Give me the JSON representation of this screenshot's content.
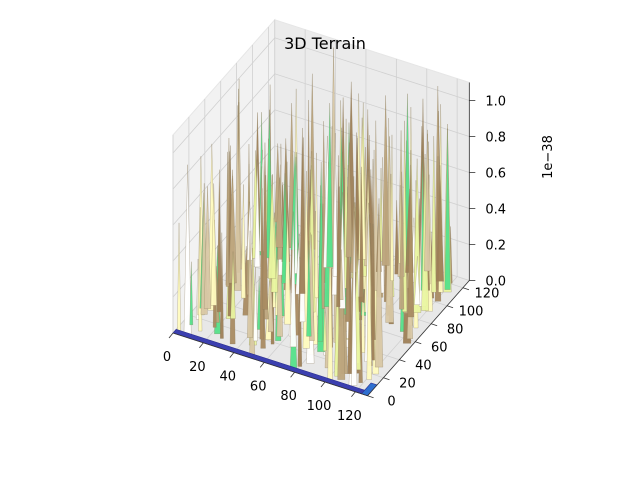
{
  "chart_data": {
    "type": "surface3d",
    "title": "3D Terrain",
    "colormap": "terrain",
    "xlim": [
      0,
      128
    ],
    "ylim": [
      0,
      128
    ],
    "zlim": [
      0,
      1.1e-38
    ],
    "z_offset_label": "1e−38",
    "x_ticks": [
      "0",
      "20",
      "40",
      "60",
      "80",
      "100",
      "120"
    ],
    "y_ticks": [
      "0",
      "20",
      "40",
      "60",
      "80",
      "100",
      "120"
    ],
    "z_ticks": [
      "0.0",
      "0.2",
      "0.4",
      "0.6",
      "0.8",
      "1.0"
    ],
    "xlabel": "",
    "ylabel": "",
    "zlabel": "",
    "grid": true,
    "legend": "none",
    "note": "Surface values are near zero (order 1e-38) with sparse spikes reaching ~1.1e-38; exact per-point values are not readable."
  }
}
